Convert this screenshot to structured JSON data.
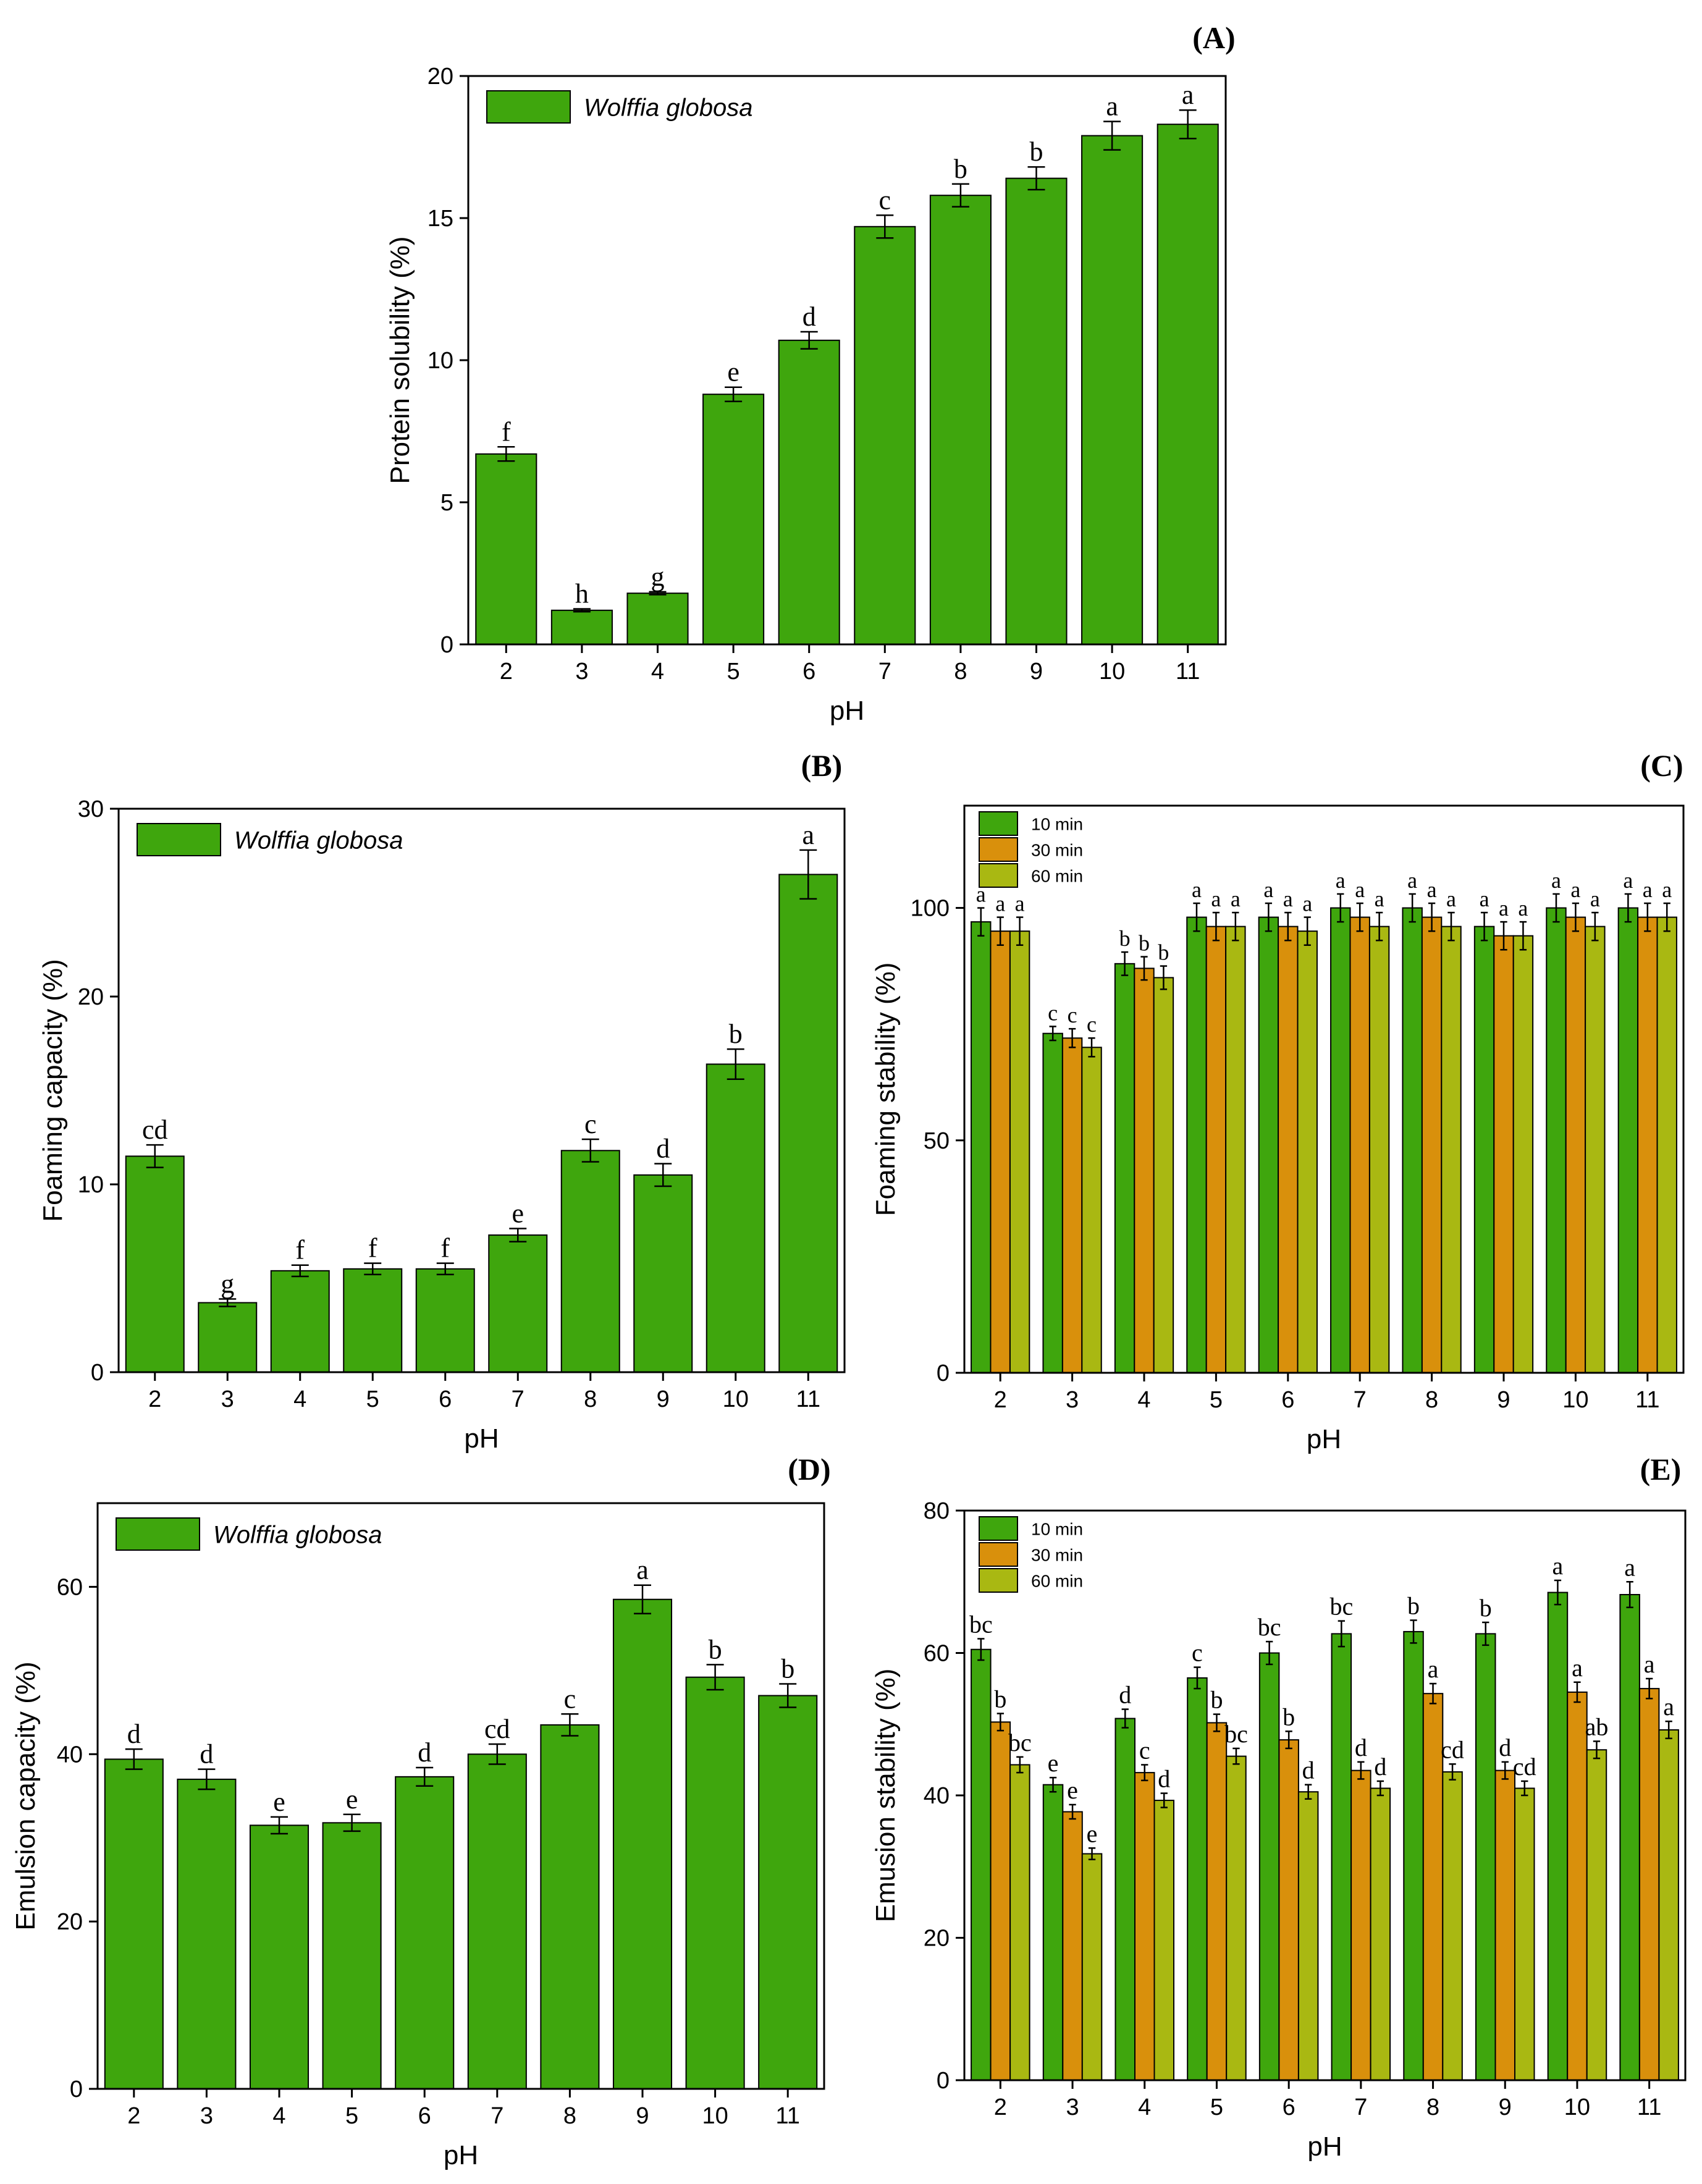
{
  "figure": {
    "colors": {
      "green": "#3fa60d",
      "orange": "#d9900c",
      "olive": "#a9b812",
      "frame": "#000000",
      "background": "#ffffff"
    }
  },
  "chart_data": [
    {
      "id": "A",
      "panel_label": "(A)",
      "type": "bar",
      "xlabel": "pH",
      "ylabel": "Protein solubility (%)",
      "ylim": [
        0,
        20
      ],
      "yticks": [
        "0",
        "5",
        "10",
        "15",
        "20"
      ],
      "categories": [
        "2",
        "3",
        "4",
        "5",
        "6",
        "7",
        "8",
        "9",
        "10",
        "11"
      ],
      "legend_position": "top-left",
      "series": [
        {
          "name": "Wolffia globosa",
          "color": "#3fa60d",
          "values": [
            6.7,
            1.2,
            1.8,
            8.8,
            10.7,
            14.7,
            15.8,
            16.4,
            17.9,
            18.3
          ],
          "errors": [
            0.25,
            0.05,
            0.05,
            0.25,
            0.3,
            0.4,
            0.4,
            0.4,
            0.5,
            0.5
          ],
          "letters": [
            "f",
            "h",
            "g",
            "e",
            "d",
            "c",
            "b",
            "b",
            "a",
            "a"
          ]
        }
      ]
    },
    {
      "id": "B",
      "panel_label": "(B)",
      "type": "bar",
      "xlabel": "pH",
      "ylabel": "Foaming capacity (%)",
      "ylim": [
        0,
        30
      ],
      "yticks": [
        "0",
        "10",
        "20",
        "30"
      ],
      "categories": [
        "2",
        "3",
        "4",
        "5",
        "6",
        "7",
        "8",
        "9",
        "10",
        "11"
      ],
      "legend_position": "top-left",
      "series": [
        {
          "name": "Wolffia globosa",
          "color": "#3fa60d",
          "values": [
            11.5,
            3.7,
            5.4,
            5.5,
            5.5,
            7.3,
            11.8,
            10.5,
            16.4,
            26.5
          ],
          "errors": [
            0.6,
            0.2,
            0.3,
            0.3,
            0.3,
            0.35,
            0.6,
            0.6,
            0.8,
            1.3
          ],
          "letters": [
            "cd",
            "g",
            "f",
            "f",
            "f",
            "e",
            "c",
            "d",
            "b",
            "a"
          ]
        }
      ]
    },
    {
      "id": "C",
      "panel_label": "(C)",
      "type": "bar",
      "xlabel": "pH",
      "ylabel": "Foaming stability (%)",
      "ylim": [
        0,
        122
      ],
      "yticks": [
        "0",
        "50",
        "100"
      ],
      "categories": [
        "2",
        "3",
        "4",
        "5",
        "6",
        "7",
        "8",
        "9",
        "10",
        "11"
      ],
      "legend_position": "top-left",
      "series": [
        {
          "name": "10 min",
          "color": "#3fa60d",
          "values": [
            97,
            73,
            88,
            98,
            98,
            100,
            100,
            96,
            100,
            100
          ],
          "errors": [
            3,
            1.5,
            2.5,
            3,
            3,
            3,
            3,
            3,
            3,
            3
          ],
          "letters": [
            "a",
            "c",
            "b",
            "a",
            "a",
            "a",
            "a",
            "a",
            "a",
            "a"
          ]
        },
        {
          "name": "30 min",
          "color": "#d9900c",
          "values": [
            95,
            72,
            87,
            96,
            96,
            98,
            98,
            94,
            98,
            98
          ],
          "errors": [
            3,
            2,
            2.5,
            3,
            3,
            3,
            3,
            3,
            3,
            3
          ],
          "letters": [
            "a",
            "c",
            "b",
            "a",
            "a",
            "a",
            "a",
            "a",
            "a",
            "a"
          ]
        },
        {
          "name": "60 min",
          "color": "#a9b812",
          "values": [
            95,
            70,
            85,
            96,
            95,
            96,
            96,
            94,
            96,
            98
          ],
          "errors": [
            3,
            2,
            2.5,
            3,
            3,
            3,
            3,
            3,
            3,
            3
          ],
          "letters": [
            "a",
            "c",
            "b",
            "a",
            "a",
            "a",
            "a",
            "a",
            "a",
            "a"
          ]
        }
      ]
    },
    {
      "id": "D",
      "panel_label": "(D)",
      "type": "bar",
      "xlabel": "pH",
      "ylabel": "Emulsion capacity (%)",
      "ylim": [
        0,
        70
      ],
      "yticks": [
        "0",
        "20",
        "40",
        "60"
      ],
      "categories": [
        "2",
        "3",
        "4",
        "5",
        "6",
        "7",
        "8",
        "9",
        "10",
        "11"
      ],
      "legend_position": "top-left",
      "series": [
        {
          "name": "Wolffia globosa",
          "color": "#3fa60d",
          "values": [
            39.4,
            37,
            31.5,
            31.8,
            37.3,
            40,
            43.5,
            58.5,
            49.2,
            47
          ],
          "errors": [
            1.2,
            1.2,
            1,
            1,
            1.1,
            1.2,
            1.3,
            1.7,
            1.5,
            1.4
          ],
          "letters": [
            "d",
            "d",
            "e",
            "e",
            "d",
            "cd",
            "c",
            "a",
            "b",
            "b"
          ]
        }
      ]
    },
    {
      "id": "E",
      "panel_label": "(E)",
      "type": "bar",
      "xlabel": "pH",
      "ylabel": "Emusion stability (%)",
      "ylim": [
        0,
        80
      ],
      "yticks": [
        "0",
        "20",
        "40",
        "60",
        "80"
      ],
      "categories": [
        "2",
        "3",
        "4",
        "5",
        "6",
        "7",
        "8",
        "9",
        "10",
        "11"
      ],
      "legend_position": "top-left",
      "series": [
        {
          "name": "10 min",
          "color": "#3fa60d",
          "values": [
            60.5,
            41.5,
            50.8,
            56.5,
            60,
            62.7,
            63,
            62.7,
            68.5,
            68.2
          ],
          "errors": [
            1.5,
            1,
            1.3,
            1.5,
            1.6,
            1.8,
            1.6,
            1.6,
            1.7,
            1.8
          ],
          "letters": [
            "bc",
            "e",
            "d",
            "c",
            "bc",
            "bc",
            "b",
            "b",
            "a",
            "a"
          ]
        },
        {
          "name": "30 min",
          "color": "#d9900c",
          "values": [
            50.3,
            37.7,
            43.2,
            50.2,
            47.8,
            43.5,
            54.3,
            43.5,
            54.5,
            55
          ],
          "errors": [
            1.2,
            1,
            1.1,
            1.2,
            1.2,
            1.2,
            1.4,
            1.2,
            1.4,
            1.4
          ],
          "letters": [
            "b",
            "e",
            "c",
            "b",
            "b",
            "d",
            "a",
            "d",
            "a",
            "a"
          ]
        },
        {
          "name": "60 min",
          "color": "#a9b812",
          "values": [
            44.3,
            31.8,
            39.3,
            45.5,
            40.5,
            41,
            43.3,
            41,
            46.4,
            49.2
          ],
          "errors": [
            1.1,
            0.8,
            1,
            1.1,
            1,
            1,
            1.1,
            1,
            1.2,
            1.2
          ],
          "letters": [
            "bc",
            "e",
            "d",
            "bc",
            "d",
            "d",
            "cd",
            "cd",
            "ab",
            "a"
          ]
        }
      ]
    }
  ]
}
